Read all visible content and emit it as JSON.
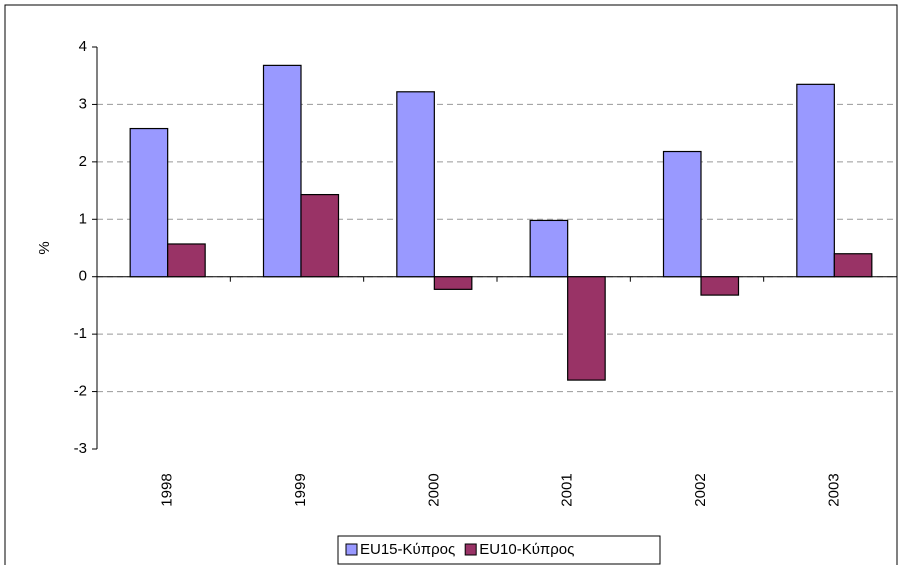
{
  "chart_data": {
    "type": "bar",
    "categories": [
      "1998",
      "1999",
      "2000",
      "2001",
      "2002",
      "2003"
    ],
    "series": [
      {
        "name": "EU15-Κύπρος",
        "color": "#9999ff",
        "values": [
          2.58,
          3.68,
          3.22,
          0.98,
          2.18,
          3.35
        ]
      },
      {
        "name": "EU10-Κύπρος",
        "color": "#993366",
        "values": [
          0.57,
          1.43,
          -0.22,
          -1.8,
          -0.32,
          0.4
        ]
      }
    ],
    "y_label": "%",
    "ylim": [
      -3,
      4
    ],
    "yticks": [
      -3,
      -2,
      -1,
      0,
      1,
      2,
      3,
      4
    ],
    "grid": true,
    "legend": "bottom"
  }
}
